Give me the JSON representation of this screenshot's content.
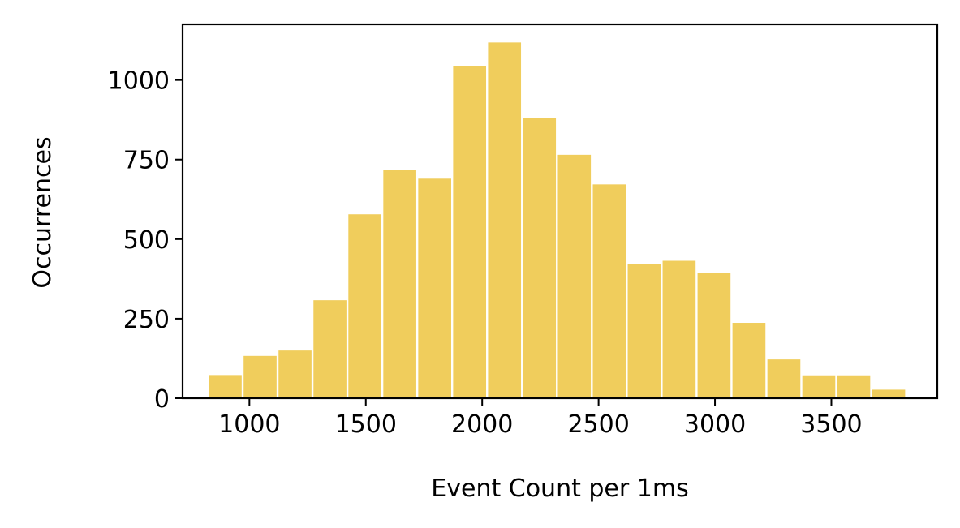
{
  "chart_data": {
    "type": "bar",
    "title": "",
    "xlabel": "Event Count per 1ms",
    "ylabel": "Occurrences",
    "xlim": [
      713,
      3955
    ],
    "ylim": [
      0,
      1175
    ],
    "xticks": [
      1000,
      1500,
      2000,
      2500,
      3000,
      3500
    ],
    "yticks": [
      0,
      250,
      500,
      750,
      1000
    ],
    "bar_color": "#f0cd5c",
    "grid": false,
    "legend": "none",
    "bins": [
      {
        "x_start": 821,
        "x_end": 971,
        "value": 73
      },
      {
        "x_start": 971,
        "x_end": 1121,
        "value": 133
      },
      {
        "x_start": 1121,
        "x_end": 1271,
        "value": 150
      },
      {
        "x_start": 1271,
        "x_end": 1421,
        "value": 308
      },
      {
        "x_start": 1421,
        "x_end": 1571,
        "value": 578
      },
      {
        "x_start": 1571,
        "x_end": 1721,
        "value": 718
      },
      {
        "x_start": 1721,
        "x_end": 1871,
        "value": 690
      },
      {
        "x_start": 1871,
        "x_end": 2021,
        "value": 1045
      },
      {
        "x_start": 2021,
        "x_end": 2171,
        "value": 1118
      },
      {
        "x_start": 2171,
        "x_end": 2321,
        "value": 880
      },
      {
        "x_start": 2321,
        "x_end": 2471,
        "value": 765
      },
      {
        "x_start": 2471,
        "x_end": 2621,
        "value": 672
      },
      {
        "x_start": 2621,
        "x_end": 2771,
        "value": 422
      },
      {
        "x_start": 2771,
        "x_end": 2921,
        "value": 432
      },
      {
        "x_start": 2921,
        "x_end": 3071,
        "value": 395
      },
      {
        "x_start": 3071,
        "x_end": 3221,
        "value": 237
      },
      {
        "x_start": 3221,
        "x_end": 3371,
        "value": 122
      },
      {
        "x_start": 3371,
        "x_end": 3521,
        "value": 72
      },
      {
        "x_start": 3521,
        "x_end": 3671,
        "value": 72
      },
      {
        "x_start": 3671,
        "x_end": 3821,
        "value": 27
      }
    ]
  }
}
